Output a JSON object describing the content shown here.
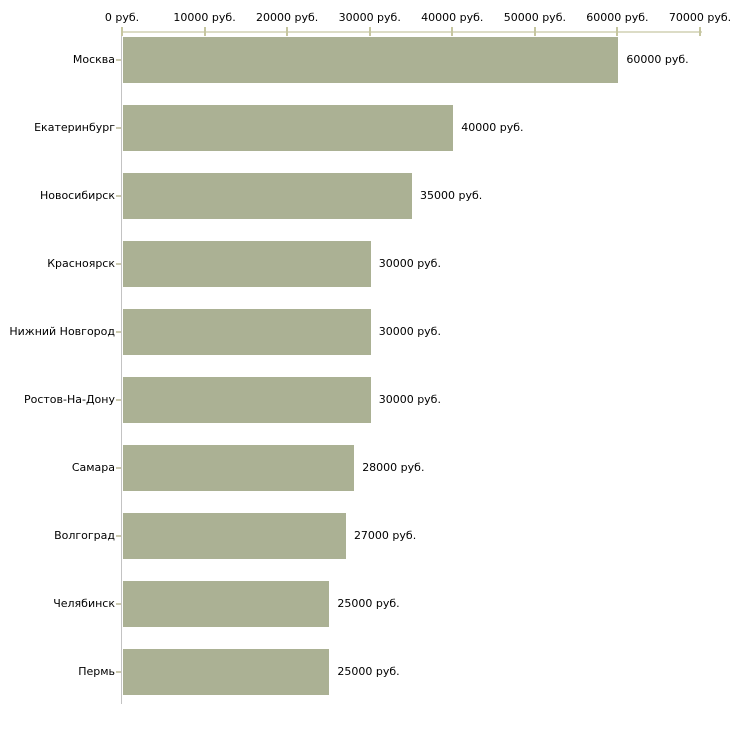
{
  "chart_data": {
    "type": "bar",
    "orientation": "horizontal",
    "title": "",
    "xlabel": "",
    "ylabel": "",
    "grid": "off",
    "legend": "none",
    "categories": [
      "Москва",
      "Екатеринбург",
      "Новосибирск",
      "Красноярск",
      "Нижний Новгород",
      "Ростов-На-Дону",
      "Самара",
      "Волгоград",
      "Челябинск",
      "Пермь"
    ],
    "values": [
      60000,
      40000,
      35000,
      30000,
      30000,
      30000,
      28000,
      27000,
      25000,
      25000
    ],
    "value_labels": [
      "60000 руб.",
      "40000 руб.",
      "35000 руб.",
      "30000 руб.",
      "30000 руб.",
      "30000 руб.",
      "28000 руб.",
      "27000 руб.",
      "25000 руб.",
      "25000 руб."
    ],
    "x_axis": {
      "position": "top",
      "xlim": [
        0,
        70000
      ],
      "ticks": [
        0,
        10000,
        20000,
        30000,
        40000,
        50000,
        60000,
        70000
      ],
      "tick_labels": [
        "0 руб.",
        "10000 руб.",
        "20000 руб.",
        "30000 руб.",
        "40000 руб.",
        "50000 руб.",
        "60000 руб.",
        "70000 руб."
      ]
    },
    "colors": {
      "bar_fill": "#abb194",
      "haxis_line": "#dcdcc6",
      "xtick_mark": "#c6c6a0",
      "vaxis_line": "#c3c3c3",
      "ytick_mark": "#cccab0",
      "text": "#000000",
      "background": "#ffffff"
    }
  }
}
